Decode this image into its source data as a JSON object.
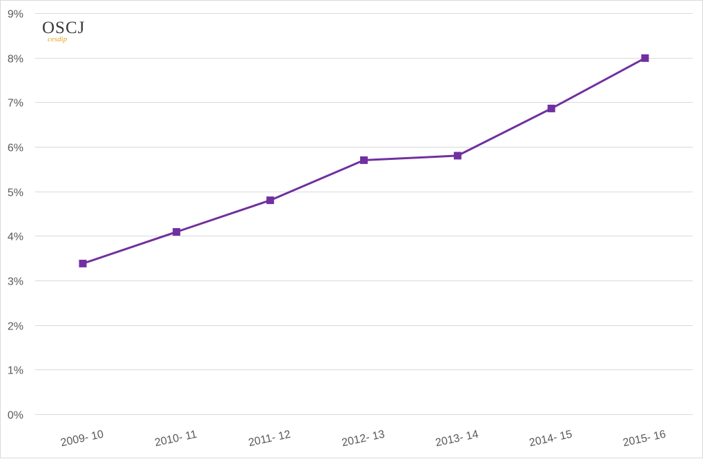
{
  "logo": {
    "main": "OSCJ",
    "sub": "cesdip"
  },
  "chart_data": {
    "type": "line",
    "title": "",
    "xlabel": "",
    "ylabel": "",
    "categories": [
      "2009- 10",
      "2010- 11",
      "2011- 12",
      "2012- 13",
      "2013- 14",
      "2014- 15",
      "2015- 16"
    ],
    "series": [
      {
        "name": "",
        "values": [
          3.38,
          4.09,
          4.8,
          5.7,
          5.8,
          6.86,
          7.99
        ],
        "color": "#7030a0",
        "marker": "square"
      }
    ],
    "ylim": [
      0,
      9
    ],
    "yticks": [
      0,
      1,
      2,
      3,
      4,
      5,
      6,
      7,
      8,
      9
    ],
    "ytick_labels": [
      "0%",
      "1%",
      "2%",
      "3%",
      "4%",
      "5%",
      "6%",
      "7%",
      "8%",
      "9%"
    ],
    "grid": true,
    "gridline_color": "#d9d9d9",
    "legend": "none"
  }
}
